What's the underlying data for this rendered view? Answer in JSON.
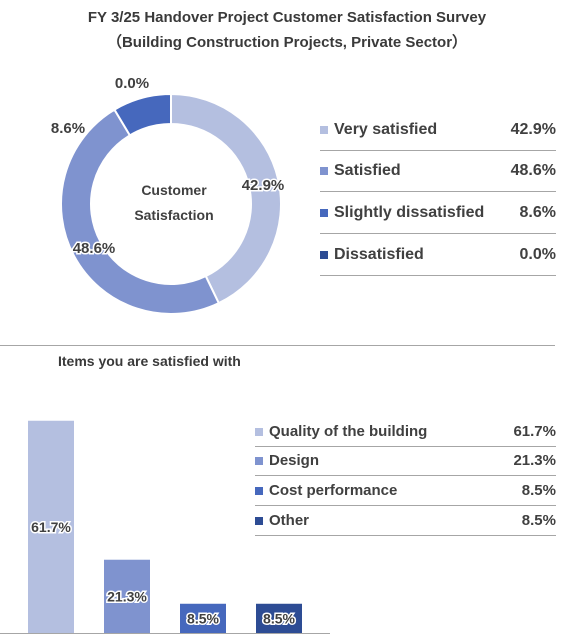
{
  "header": {
    "title_line1": "FY 3/25 Handover Project Customer Satisfaction Survey",
    "title_line2": "（Building Construction Projects, Private Sector）"
  },
  "donut": {
    "center_line1": "Customer",
    "center_line2": "Satisfaction"
  },
  "bar_section": {
    "title": "Items you are satisfied with"
  },
  "colors": {
    "light": "#b4bfe0",
    "medium": "#7f93cf",
    "dark": "#4668bd",
    "darkest": "#2d4c94",
    "text": "#404040",
    "rule": "#a6a6a6"
  },
  "chart_data": [
    {
      "type": "pie",
      "title": "",
      "categories": [
        "Very satisfied",
        "Satisfied",
        "Slightly dissatisfied",
        "Dissatisfied"
      ],
      "values": [
        42.9,
        48.6,
        8.6,
        0.0
      ],
      "labels": [
        "42.9%",
        "48.6%",
        "8.6%",
        "0.0%"
      ],
      "colors": [
        "#b4bfe0",
        "#7f93cf",
        "#4668bd",
        "#2d4c94"
      ],
      "legend_position": "right"
    },
    {
      "type": "bar",
      "title": "Items you are satisfied with",
      "categories": [
        "Quality of the building",
        "Design",
        "Cost performance",
        "Other"
      ],
      "values": [
        61.7,
        21.3,
        8.5,
        8.5
      ],
      "labels": [
        "61.7%",
        "21.3%",
        "8.5%",
        "8.5%"
      ],
      "colors": [
        "#b4bfe0",
        "#7f93cf",
        "#4668bd",
        "#2d4c94"
      ],
      "ylim": [
        0,
        100
      ],
      "grid": false,
      "legend_position": "right"
    }
  ]
}
